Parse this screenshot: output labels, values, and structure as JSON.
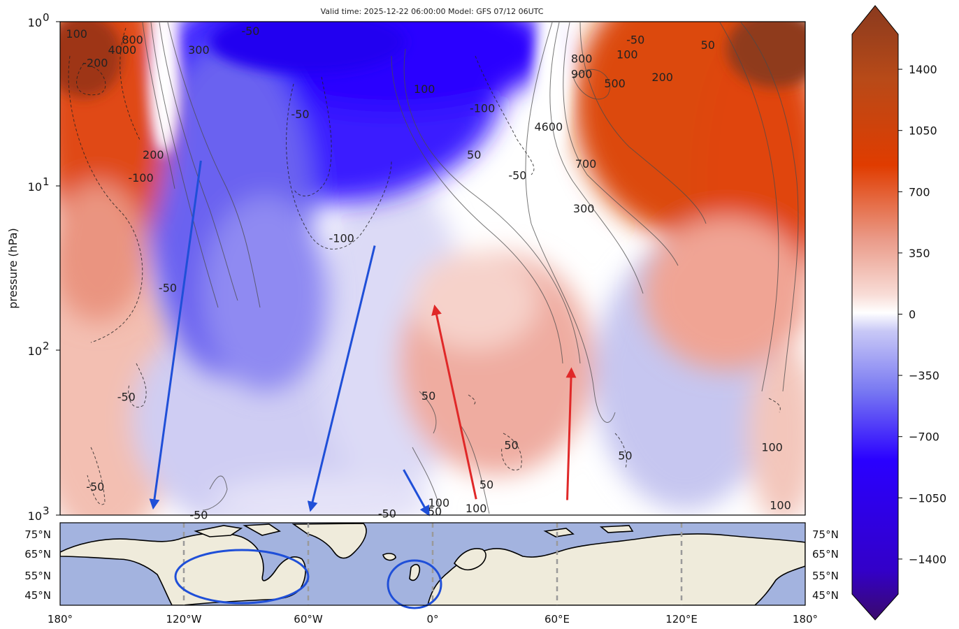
{
  "chart_data": [
    {
      "type": "heatmap",
      "title": "Valid time: 2025-12-22 06:00:00 Model: GFS 07/12 06UTC",
      "ylabel": "pressure (hPa)",
      "yscale": "log",
      "ylim": [
        1000,
        1
      ],
      "xlim": [
        -180,
        180
      ],
      "y_ticks": [
        {
          "value": 1,
          "base": "10",
          "exp": "0"
        },
        {
          "value": 10,
          "base": "10",
          "exp": "1"
        },
        {
          "value": 100,
          "base": "10",
          "exp": "2"
        },
        {
          "value": 1000,
          "base": "10",
          "exp": "3"
        }
      ],
      "colorbar": {
        "extend": "both",
        "range": [
          -1600,
          1600
        ],
        "ticks": [
          -1400,
          -1050,
          -700,
          -350,
          0,
          350,
          700,
          1050,
          1400
        ],
        "tick_labels": [
          "−1400",
          "−1050",
          "−700",
          "−350",
          "0",
          "350",
          "700",
          "1050",
          "1400"
        ],
        "colors": {
          "min": "#3a0a6a",
          "neg_strong": "#2a00ff",
          "neutral": "#ffffff",
          "pos_strong": "#e03c00",
          "max": "#8a3a1e"
        }
      },
      "contour_labels": [
        {
          "text": "100",
          "x": -172,
          "y": 1.2
        },
        {
          "text": "800",
          "x": -145,
          "y": 1.3
        },
        {
          "text": "4000",
          "x": -150,
          "y": 1.5
        },
        {
          "text": "-200",
          "x": -163,
          "y": 1.8
        },
        {
          "text": "300",
          "x": -113,
          "y": 1.5
        },
        {
          "text": "-50",
          "x": -88,
          "y": 1.15
        },
        {
          "text": "200",
          "x": -135,
          "y": 6.5
        },
        {
          "text": "-100",
          "x": -141,
          "y": 9.0
        },
        {
          "text": "-50",
          "x": -64,
          "y": 3.7
        },
        {
          "text": "-100",
          "x": -44,
          "y": 21
        },
        {
          "text": "-50",
          "x": -128,
          "y": 42
        },
        {
          "text": "-50",
          "x": -148,
          "y": 193
        },
        {
          "text": "-50",
          "x": -163,
          "y": 680
        },
        {
          "text": "-50",
          "x": -113,
          "y": 1010
        },
        {
          "text": "100",
          "x": -4,
          "y": 2.6
        },
        {
          "text": "-100",
          "x": 24,
          "y": 3.4
        },
        {
          "text": "50",
          "x": 20,
          "y": 6.5
        },
        {
          "text": "4600",
          "x": 56,
          "y": 4.4
        },
        {
          "text": "-50",
          "x": 41,
          "y": 8.7
        },
        {
          "text": "800",
          "x": 72,
          "y": 1.7
        },
        {
          "text": "900",
          "x": 72,
          "y": 2.1
        },
        {
          "text": "500",
          "x": 88,
          "y": 2.4
        },
        {
          "text": "200",
          "x": 111,
          "y": 2.2
        },
        {
          "text": "100",
          "x": 94,
          "y": 1.6
        },
        {
          "text": "-50",
          "x": 98,
          "y": 1.3
        },
        {
          "text": "50",
          "x": 133,
          "y": 1.4
        },
        {
          "text": "700",
          "x": 74,
          "y": 7.4
        },
        {
          "text": "300",
          "x": 73,
          "y": 13.8
        },
        {
          "text": "50",
          "x": -2,
          "y": 190
        },
        {
          "text": "50",
          "x": 38,
          "y": 380
        },
        {
          "text": "50",
          "x": 93,
          "y": 440
        },
        {
          "text": "50",
          "x": 26,
          "y": 660
        },
        {
          "text": "100",
          "x": 164,
          "y": 390
        },
        {
          "text": "100",
          "x": 168,
          "y": 880
        },
        {
          "text": "100",
          "x": 3,
          "y": 850
        },
        {
          "text": "100",
          "x": 21,
          "y": 920
        },
        {
          "text": "50",
          "x": 1,
          "y": 960
        },
        {
          "text": "-50",
          "x": -22,
          "y": 990
        }
      ],
      "arrows": [
        {
          "color": "#1f4fd8",
          "from": [
            -112,
            7
          ],
          "to": [
            -135,
            900
          ]
        },
        {
          "color": "#1f4fd8",
          "from": [
            -28,
            23
          ],
          "to": [
            -59,
            930
          ]
        },
        {
          "color": "#1f4fd8",
          "from": [
            -14,
            530
          ],
          "to": [
            -2,
            990
          ]
        },
        {
          "color": "#e02828",
          "from": [
            21,
            800
          ],
          "to": [
            1,
            54
          ]
        },
        {
          "color": "#e02828",
          "from": [
            65,
            810
          ],
          "to": [
            67,
            130
          ]
        }
      ]
    },
    {
      "type": "map",
      "projection": "PlateCarree",
      "xlim": [
        -180,
        180
      ],
      "ylim": [
        40,
        80
      ],
      "x_ticks": [
        "180°",
        "120°W",
        "60°W",
        "0°",
        "60°E",
        "120°E",
        "180°"
      ],
      "y_ticks": [
        "75°N",
        "65°N",
        "55°N",
        "45°N"
      ],
      "gridlines_lon": [
        -120,
        -60,
        0,
        60,
        120
      ],
      "ocean_color": "#a3b3df",
      "land_color": "#efebdb",
      "circles": [
        {
          "color": "#1f4fd8",
          "center": [
            -92,
            55
          ],
          "radius_deg": [
            32,
            13
          ]
        },
        {
          "color": "#1f4fd8",
          "center": [
            -9,
            51
          ],
          "radius_deg": [
            13,
            11.5
          ]
        }
      ]
    }
  ]
}
